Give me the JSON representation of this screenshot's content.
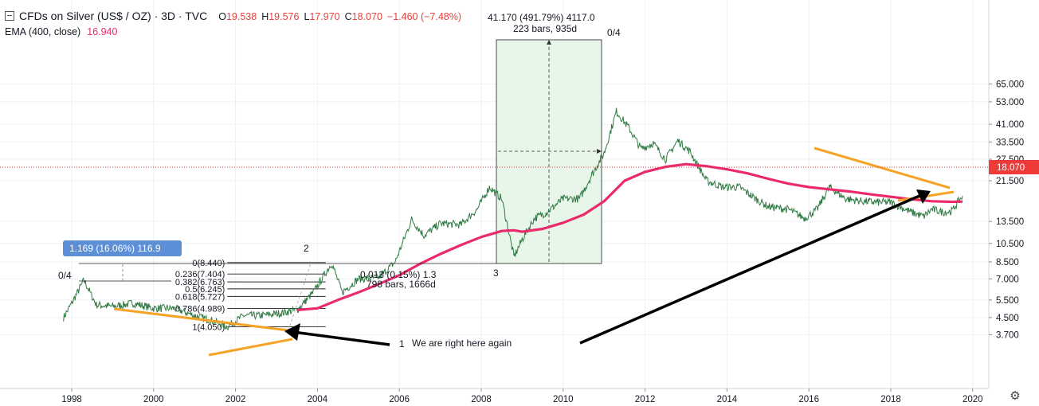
{
  "legend": {
    "symbol": "CFDs on Silver (US$ / OZ) · 3D · TVC",
    "o_label": "O",
    "o_value": "19.538",
    "h_label": "H",
    "h_value": "19.576",
    "l_label": "L",
    "l_value": "17.970",
    "c_label": "C",
    "c_value": "18.070",
    "change": "−1.460 (−7.48%)",
    "ema_label": "EMA (400, close)",
    "ema_value": "16.940"
  },
  "last_price_tag": "18.070",
  "colors": {
    "price": "#2f7a43",
    "ema": "#ea2a6b",
    "trend_orange": "#f5a327",
    "price_tag": "#ef3a3a",
    "measure_fill": "#e8f5e9",
    "label_box": "#5d8fd6"
  },
  "annotations": {
    "measure_top": "41.170 (491.79%) 4117.0",
    "measure_bars": "223 bars, 935d",
    "fib_small": "0.013 (0.15%) 1.3",
    "fib_small_bars": "798 bars, 1666d",
    "blue_label": "1.169 (16.06%) 116.9",
    "note": "We are right here again",
    "num_1": "1",
    "num_2": "2",
    "num_3": "3",
    "peak_tag": "0/4",
    "left_tag": "0/4"
  },
  "fib_levels": [
    {
      "label": "0(8.440)",
      "value": 8.44
    },
    {
      "label": "0.236(7.404)",
      "value": 7.404
    },
    {
      "label": "0.382(6.763)",
      "value": 6.763
    },
    {
      "label": "0.5(6.245)",
      "value": 6.245
    },
    {
      "label": "0.618(5.727)",
      "value": 5.727
    },
    {
      "label": "0.786(4.989)",
      "value": 4.989
    },
    {
      "label": "1(4.050)",
      "value": 4.05
    }
  ],
  "chart_data": {
    "type": "line",
    "title": "CFDs on Silver (US$ / OZ), 3D, TVC",
    "xlabel": "",
    "ylabel": "",
    "scale": "log",
    "xlim": [
      1997.75,
      2021.0
    ],
    "ylim": [
      3.4,
      66.0
    ],
    "x_ticks": [
      "1998",
      "2000",
      "2002",
      "2004",
      "2006",
      "2008",
      "2010",
      "2012",
      "2014",
      "2016",
      "2018",
      "2020"
    ],
    "y_ticks": [
      "65.000",
      "53.000",
      "41.000",
      "33.500",
      "27.500",
      "21.500",
      "18.070",
      "13.500",
      "10.500",
      "8.500",
      "7.000",
      "5.500",
      "4.500",
      "3.700"
    ],
    "series": [
      {
        "name": "Silver",
        "x": [
          1997.8,
          1998.0,
          1998.3,
          1998.6,
          1999.0,
          1999.5,
          2000.0,
          2000.5,
          2001.0,
          2001.5,
          2001.8,
          2002.2,
          2002.6,
          2003.0,
          2003.5,
          2003.9,
          2004.2,
          2004.35,
          2004.6,
          2005.0,
          2005.5,
          2005.9,
          2006.3,
          2006.6,
          2007.0,
          2007.5,
          2007.9,
          2008.2,
          2008.5,
          2008.8,
          2009.0,
          2009.3,
          2009.6,
          2010.0,
          2010.4,
          2010.7,
          2011.0,
          2011.3,
          2011.6,
          2011.9,
          2012.2,
          2012.5,
          2012.8,
          2013.1,
          2013.5,
          2013.9,
          2014.3,
          2014.7,
          2015.0,
          2015.5,
          2015.9,
          2016.2,
          2016.5,
          2016.9,
          2017.3,
          2017.7,
          2018.0,
          2018.5,
          2018.8,
          2019.0,
          2019.3,
          2019.5,
          2019.65,
          2019.75
        ],
        "values": [
          4.5,
          5.3,
          6.9,
          5.2,
          5.1,
          5.3,
          5.0,
          5.0,
          4.6,
          4.3,
          4.05,
          4.6,
          4.6,
          4.7,
          4.9,
          6.0,
          7.5,
          8.4,
          6.0,
          7.0,
          7.1,
          8.5,
          13.8,
          11.5,
          13.2,
          13.0,
          15.5,
          20.0,
          17.5,
          9.0,
          11.0,
          14.0,
          15.0,
          17.5,
          17.5,
          23.0,
          29.5,
          47.5,
          39.5,
          31.0,
          33.0,
          27.5,
          34.0,
          30.0,
          21.5,
          20.0,
          20.0,
          17.5,
          16.0,
          15.5,
          14.0,
          15.5,
          20.0,
          17.5,
          17.0,
          16.8,
          16.8,
          15.0,
          14.3,
          15.5,
          15.0,
          15.2,
          17.0,
          18.07
        ]
      },
      {
        "name": "EMA (400, close)",
        "x": [
          2003.5,
          2004.0,
          2004.5,
          2005.0,
          2005.5,
          2006.0,
          2006.5,
          2007.0,
          2007.5,
          2008.0,
          2008.5,
          2008.8,
          2009.0,
          2009.5,
          2010.0,
          2010.5,
          2011.0,
          2011.5,
          2012.0,
          2012.5,
          2013.0,
          2013.5,
          2014.0,
          2014.5,
          2015.0,
          2015.5,
          2016.0,
          2016.5,
          2017.0,
          2017.5,
          2018.0,
          2018.5,
          2019.0,
          2019.5,
          2019.75
        ],
        "values": [
          4.9,
          5.0,
          5.5,
          6.0,
          6.6,
          7.3,
          8.3,
          9.3,
          10.3,
          11.3,
          12.1,
          12.2,
          12.0,
          12.4,
          13.3,
          14.6,
          17.0,
          21.5,
          23.8,
          25.2,
          26.0,
          25.4,
          24.5,
          23.4,
          22.0,
          20.8,
          20.0,
          19.5,
          19.0,
          18.4,
          17.9,
          17.4,
          17.0,
          16.9,
          16.94
        ]
      }
    ],
    "legend": "top-left",
    "grid": true
  }
}
